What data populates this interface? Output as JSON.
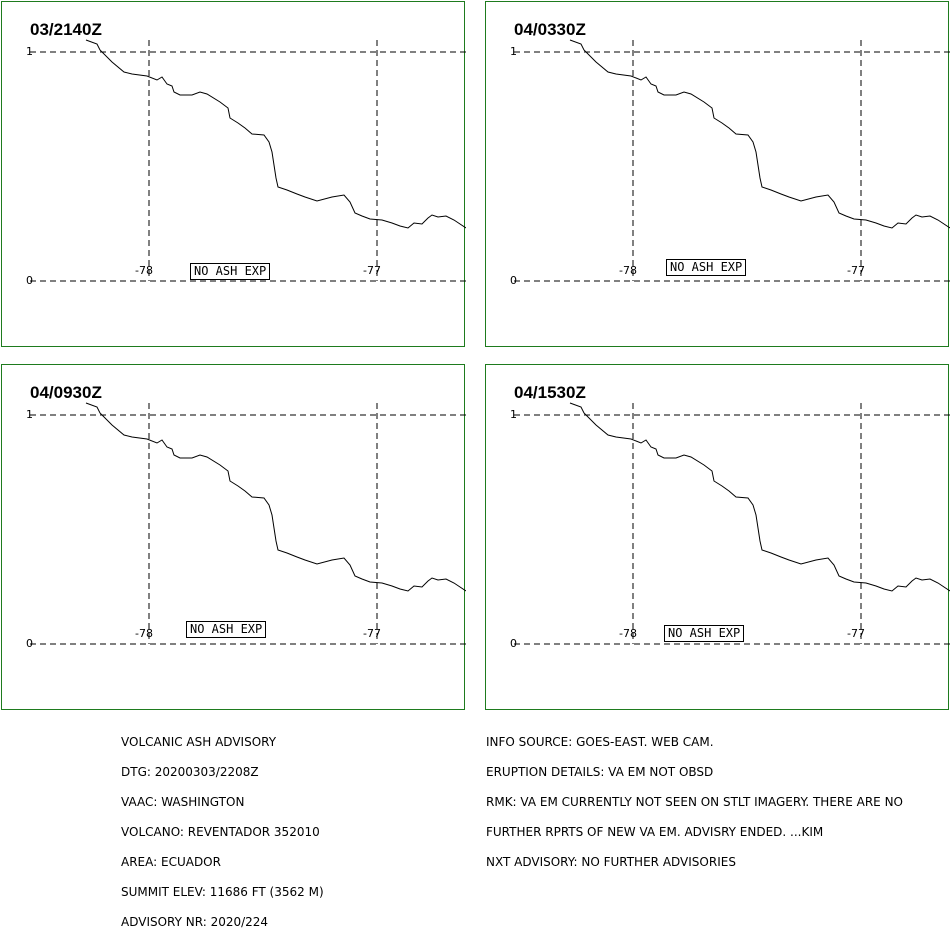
{
  "panels": [
    {
      "time_label": "03/2140Z",
      "status": "NO ASH EXP"
    },
    {
      "time_label": "04/0330Z",
      "status": "NO ASH EXP"
    },
    {
      "time_label": "04/0930Z",
      "status": "NO ASH EXP"
    },
    {
      "time_label": "04/1530Z",
      "status": "NO ASH EXP"
    }
  ],
  "grid": {
    "lat_labels": [
      "1",
      "0"
    ],
    "lon_labels": [
      "-78",
      "-77"
    ]
  },
  "advisory_left": [
    "VOLCANIC ASH ADVISORY",
    "DTG: 20200303/2208Z",
    "VAAC: WASHINGTON",
    "VOLCANO: REVENTADOR 352010",
    "AREA: ECUADOR",
    "SUMMIT ELEV: 11686 FT (3562 M)",
    "ADVISORY NR: 2020/224"
  ],
  "advisory_right": [
    "INFO SOURCE: GOES-EAST. WEB CAM.",
    "ERUPTION DETAILS: VA EM NOT OBSD",
    "RMK: VA EM CURRENTLY NOT SEEN ON STLT IMAGERY. THERE ARE NO",
    "FURTHER RPRTS OF NEW VA EM. ADVISRY ENDED. ...KIM",
    "NXT ADVISORY: NO FURTHER ADVISORIES"
  ],
  "colors": {
    "panel_border": "#1e7b1e",
    "lines": "#000000"
  }
}
